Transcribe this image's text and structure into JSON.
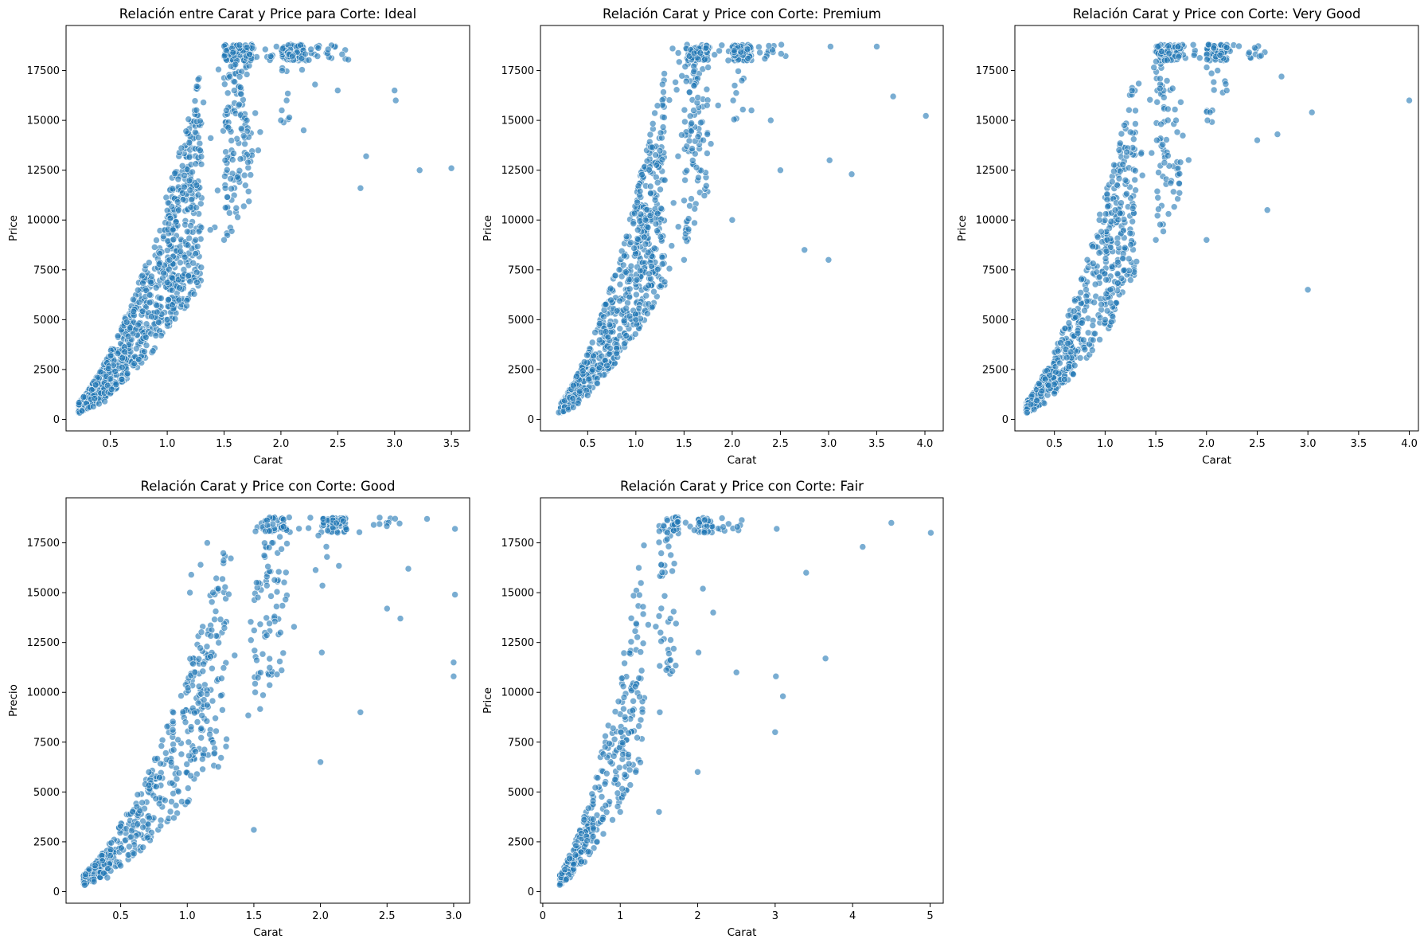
{
  "chart_data": [
    {
      "type": "scatter",
      "title": "Relación entre Carat y Price para Corte: Ideal",
      "xlabel": "Carat",
      "ylabel": "Price",
      "xlim": [
        0.11,
        3.66
      ],
      "ylim": [
        -580,
        19760
      ],
      "xticks": [
        0.5,
        1.0,
        1.5,
        2.0,
        2.5,
        3.0,
        3.5
      ],
      "yticks": [
        0,
        2500,
        5000,
        7500,
        10000,
        12500,
        15000,
        17500
      ],
      "grid": false,
      "color": "#1f77b4",
      "points": [
        [
          0.23,
          326
        ],
        [
          0.25,
          420
        ],
        [
          0.3,
          550
        ],
        [
          0.31,
          600
        ],
        [
          0.32,
          620
        ],
        [
          0.35,
          640
        ],
        [
          0.4,
          780
        ],
        [
          0.45,
          900
        ],
        [
          0.5,
          1300
        ],
        [
          0.51,
          1500
        ],
        [
          0.55,
          1750
        ],
        [
          0.6,
          2000
        ],
        [
          0.65,
          2300
        ],
        [
          0.7,
          2700
        ],
        [
          0.71,
          2800
        ],
        [
          0.75,
          3000
        ],
        [
          0.8,
          3400
        ],
        [
          0.9,
          4200
        ],
        [
          1.0,
          5000
        ],
        [
          1.01,
          6000
        ],
        [
          1.02,
          8000
        ],
        [
          1.05,
          9500
        ],
        [
          1.1,
          10500
        ],
        [
          1.2,
          11500
        ],
        [
          1.25,
          9000
        ],
        [
          1.3,
          12800
        ],
        [
          1.5,
          9000
        ],
        [
          1.51,
          13000
        ],
        [
          1.52,
          15500
        ],
        [
          1.55,
          17200
        ],
        [
          1.6,
          17800
        ],
        [
          1.7,
          15000
        ],
        [
          1.8,
          13500
        ],
        [
          2.0,
          15000
        ],
        [
          2.01,
          17500
        ],
        [
          2.05,
          16000
        ],
        [
          2.1,
          18200
        ],
        [
          2.2,
          14500
        ],
        [
          2.3,
          16800
        ],
        [
          2.5,
          16500
        ],
        [
          2.7,
          11600
        ],
        [
          2.75,
          13200
        ],
        [
          3.0,
          16500
        ],
        [
          3.01,
          16000
        ],
        [
          3.22,
          12500
        ],
        [
          3.5,
          12600
        ]
      ]
    },
    {
      "type": "scatter",
      "title": "Relación Carat y Price con Corte: Premium",
      "xlabel": "Carat",
      "ylabel": "Price",
      "xlim": [
        0.01,
        4.19
      ],
      "ylim": [
        -580,
        19760
      ],
      "xticks": [
        0.5,
        1.0,
        1.5,
        2.0,
        2.5,
        3.0,
        3.5,
        4.0
      ],
      "yticks": [
        0,
        2500,
        5000,
        7500,
        10000,
        12500,
        15000,
        17500
      ],
      "grid": false,
      "color": "#1f77b4",
      "points": [
        [
          0.2,
          345
        ],
        [
          0.25,
          400
        ],
        [
          0.3,
          500
        ],
        [
          0.35,
          600
        ],
        [
          0.4,
          800
        ],
        [
          0.5,
          1200
        ],
        [
          0.6,
          1800
        ],
        [
          0.7,
          2700
        ],
        [
          0.8,
          3300
        ],
        [
          0.9,
          4200
        ],
        [
          1.0,
          5000
        ],
        [
          1.01,
          7000
        ],
        [
          1.02,
          9500
        ],
        [
          1.1,
          10000
        ],
        [
          1.2,
          11000
        ],
        [
          1.3,
          12000
        ],
        [
          1.5,
          8000
        ],
        [
          1.51,
          12000
        ],
        [
          1.6,
          15500
        ],
        [
          1.7,
          14000
        ],
        [
          2.0,
          10000
        ],
        [
          2.01,
          16000
        ],
        [
          2.02,
          18500
        ],
        [
          2.1,
          17000
        ],
        [
          2.2,
          15500
        ],
        [
          2.4,
          15000
        ],
        [
          2.5,
          12500
        ],
        [
          2.75,
          8500
        ],
        [
          3.0,
          8000
        ],
        [
          3.01,
          13000
        ],
        [
          3.02,
          18700
        ],
        [
          3.24,
          12300
        ],
        [
          3.5,
          18700
        ],
        [
          3.67,
          16200
        ],
        [
          4.01,
          15223
        ]
      ]
    },
    {
      "type": "scatter",
      "title": "Relación Carat y Price con Corte: Very Good",
      "xlabel": "Carat",
      "ylabel": "Price",
      "xlim": [
        0.11,
        4.09
      ],
      "ylim": [
        -580,
        19760
      ],
      "xticks": [
        0.5,
        1.0,
        1.5,
        2.0,
        2.5,
        3.0,
        3.5,
        4.0
      ],
      "yticks": [
        0,
        2500,
        5000,
        7500,
        10000,
        12500,
        15000,
        17500
      ],
      "grid": false,
      "color": "#1f77b4",
      "points": [
        [
          0.23,
          336
        ],
        [
          0.3,
          500
        ],
        [
          0.4,
          800
        ],
        [
          0.5,
          1300
        ],
        [
          0.6,
          2000
        ],
        [
          0.7,
          2700
        ],
        [
          0.8,
          3500
        ],
        [
          0.9,
          4300
        ],
        [
          1.0,
          5000
        ],
        [
          1.01,
          7000
        ],
        [
          1.02,
          9000
        ],
        [
          1.1,
          10500
        ],
        [
          1.2,
          12000
        ],
        [
          1.3,
          11500
        ],
        [
          1.5,
          9000
        ],
        [
          1.51,
          14000
        ],
        [
          1.52,
          18700
        ],
        [
          1.7,
          15000
        ],
        [
          2.0,
          9000
        ],
        [
          2.01,
          15000
        ],
        [
          2.02,
          18800
        ],
        [
          2.2,
          16500
        ],
        [
          2.5,
          14000
        ],
        [
          2.6,
          10500
        ],
        [
          2.7,
          14300
        ],
        [
          2.74,
          17200
        ],
        [
          3.0,
          6500
        ],
        [
          3.04,
          15400
        ],
        [
          4.0,
          16000
        ]
      ]
    },
    {
      "type": "scatter",
      "title": "Relación Carat y Price con Corte: Good",
      "xlabel": "Carat",
      "ylabel": "Precio",
      "xlim": [
        0.09,
        3.12
      ],
      "ylim": [
        -580,
        19760
      ],
      "xticks": [
        0.5,
        1.0,
        1.5,
        2.0,
        2.5,
        3.0
      ],
      "yticks": [
        0,
        2500,
        5000,
        7500,
        10000,
        12500,
        15000,
        17500
      ],
      "grid": false,
      "color": "#1f77b4",
      "points": [
        [
          0.23,
          327
        ],
        [
          0.3,
          500
        ],
        [
          0.4,
          700
        ],
        [
          0.5,
          1300
        ],
        [
          0.6,
          1900
        ],
        [
          0.7,
          2700
        ],
        [
          0.8,
          3300
        ],
        [
          0.9,
          3700
        ],
        [
          1.0,
          4500
        ],
        [
          1.01,
          7500
        ],
        [
          1.02,
          15000
        ],
        [
          1.03,
          15900
        ],
        [
          1.1,
          16400
        ],
        [
          1.15,
          17500
        ],
        [
          1.5,
          3100
        ],
        [
          1.51,
          10000
        ],
        [
          1.52,
          15500
        ],
        [
          1.7,
          13000
        ],
        [
          2.0,
          6500
        ],
        [
          2.01,
          12000
        ],
        [
          2.02,
          18700
        ],
        [
          2.3,
          9000
        ],
        [
          2.4,
          18400
        ],
        [
          2.5,
          14200
        ],
        [
          2.6,
          13700
        ],
        [
          2.66,
          16200
        ],
        [
          2.8,
          18700
        ],
        [
          3.0,
          11500
        ],
        [
          3.01,
          18200
        ],
        [
          3.01,
          14900
        ],
        [
          3.0,
          10800
        ]
      ]
    },
    {
      "type": "scatter",
      "title": "Relación Carat y Price con Corte: Fair",
      "xlabel": "Carat",
      "ylabel": "Price",
      "xlim": [
        -0.03,
        5.17
      ],
      "ylim": [
        -580,
        19760
      ],
      "xticks": [
        0,
        1,
        2,
        3,
        4,
        5
      ],
      "yticks": [
        0,
        2500,
        5000,
        7500,
        10000,
        12500,
        15000,
        17500
      ],
      "grid": false,
      "color": "#1f77b4",
      "points": [
        [
          0.22,
          337
        ],
        [
          0.3,
          600
        ],
        [
          0.5,
          1500
        ],
        [
          0.7,
          2500
        ],
        [
          0.9,
          3600
        ],
        [
          1.0,
          4000
        ],
        [
          1.01,
          8000
        ],
        [
          1.02,
          10700
        ],
        [
          1.2,
          6000
        ],
        [
          1.5,
          4000
        ],
        [
          1.51,
          9000
        ],
        [
          1.52,
          13000
        ],
        [
          1.53,
          16400
        ],
        [
          2.0,
          6000
        ],
        [
          2.01,
          12000
        ],
        [
          2.02,
          18500
        ],
        [
          2.2,
          14000
        ],
        [
          2.5,
          11000
        ],
        [
          2.51,
          18300
        ],
        [
          3.0,
          8000
        ],
        [
          3.01,
          10800
        ],
        [
          3.02,
          18200
        ],
        [
          3.1,
          9800
        ],
        [
          3.4,
          16000
        ],
        [
          3.65,
          11700
        ],
        [
          4.13,
          17300
        ],
        [
          4.5,
          18500
        ],
        [
          5.01,
          18000
        ]
      ]
    }
  ]
}
